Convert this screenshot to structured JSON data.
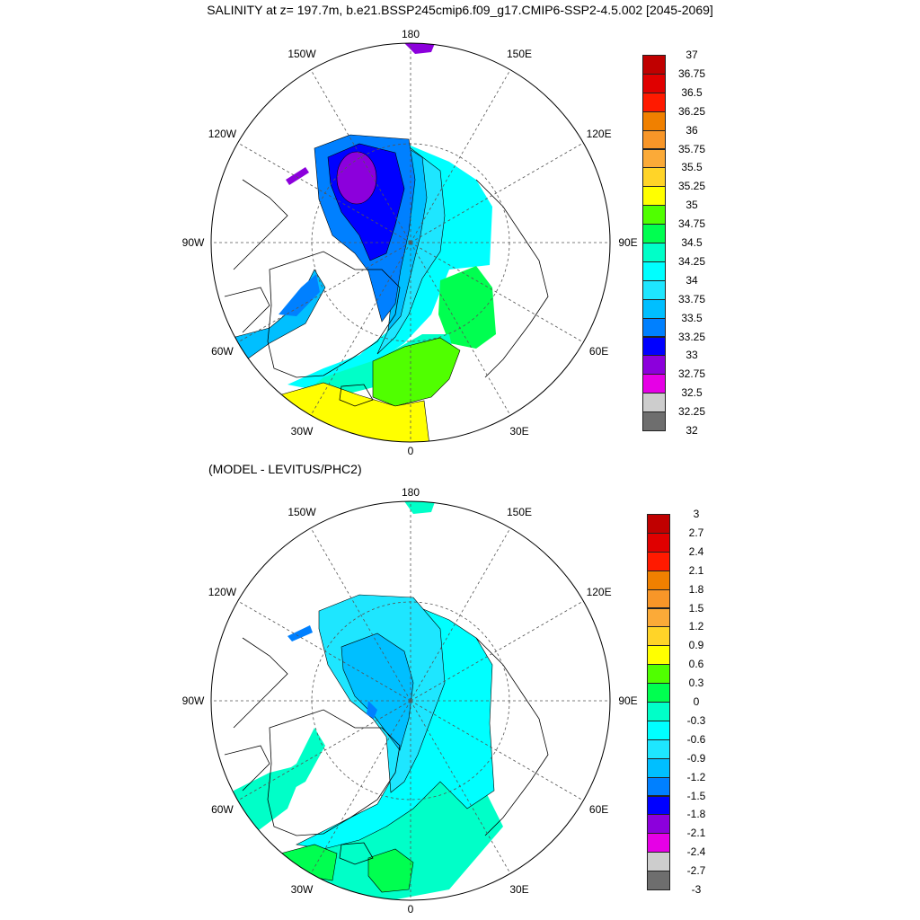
{
  "title": "SALINITY at z= 197.7m, b.e21.BSSP245cmip6.f09_g17.CMIP6-SSP2-4.5.002 [2045-2069]",
  "subtitle": "(MODEL - LEVITUS/PHC2)",
  "longitude_labels": [
    {
      "text": "180",
      "lon": 180
    },
    {
      "text": "150W",
      "lon": -150
    },
    {
      "text": "150E",
      "lon": 150
    },
    {
      "text": "120W",
      "lon": -120
    },
    {
      "text": "120E",
      "lon": 120
    },
    {
      "text": "90W",
      "lon": -90
    },
    {
      "text": "90E",
      "lon": 90
    },
    {
      "text": "60W",
      "lon": -60
    },
    {
      "text": "60E",
      "lon": 60
    },
    {
      "text": "30W",
      "lon": -30
    },
    {
      "text": "30E",
      "lon": 30
    },
    {
      "text": "0",
      "lon": 0
    }
  ],
  "colors": [
    "#c00000",
    "#e00000",
    "#ff1a00",
    "#f08000",
    "#f89628",
    "#fbaa38",
    "#ffd428",
    "#ffff00",
    "#50ff00",
    "#00ff50",
    "#00ffc8",
    "#00ffff",
    "#1ee6ff",
    "#00bfff",
    "#0080ff",
    "#0000ff",
    "#8c00dc",
    "#e600e6",
    "#cdcdcd",
    "#6e6e6e"
  ],
  "colorbar_top": {
    "labels": [
      "37",
      "36.75",
      "36.5",
      "36.25",
      "36",
      "35.75",
      "35.5",
      "35.25",
      "35",
      "34.75",
      "34.5",
      "34.25",
      "34",
      "33.75",
      "33.5",
      "33.25",
      "33",
      "32.75",
      "32.5",
      "32.25",
      "32"
    ]
  },
  "colorbar_bottom": {
    "labels": [
      "3",
      "2.7",
      "2.4",
      "2.1",
      "1.8",
      "1.5",
      "1.2",
      "0.9",
      "0.6",
      "0.3",
      "0",
      "-0.3",
      "-0.6",
      "-0.9",
      "-1.2",
      "-1.5",
      "-1.8",
      "-2.1",
      "-2.4",
      "-2.7",
      "-3"
    ]
  }
}
